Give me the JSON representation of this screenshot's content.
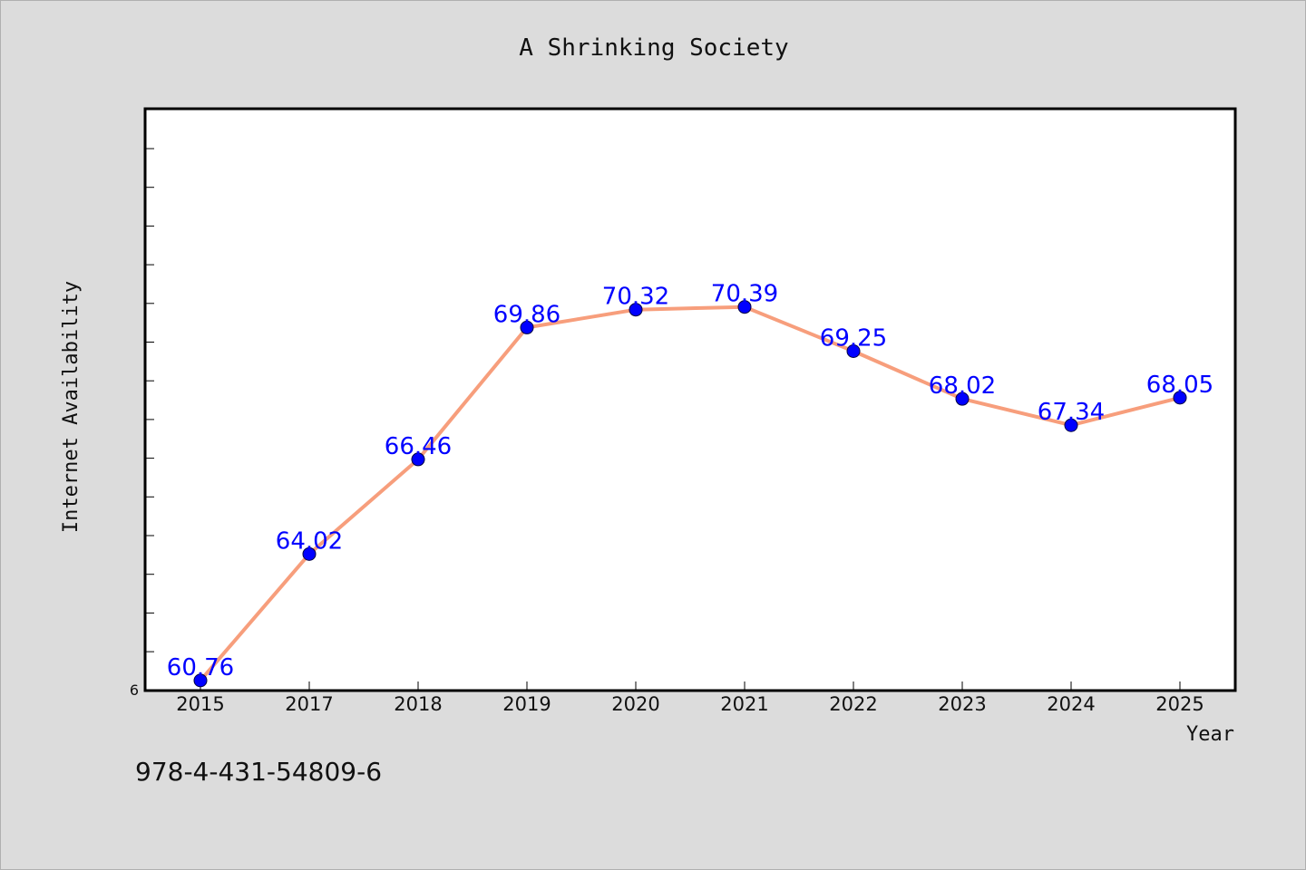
{
  "footer_text": "978-4-431-54809-6",
  "colors": {
    "background": "#dcdcdc",
    "plot_background": "#ffffff",
    "line": "#f79e7c",
    "marker": "#0000ff",
    "data_label": "#0000ff"
  },
  "chart_data": {
    "type": "line",
    "title": "A Shrinking Society",
    "xlabel": "Year",
    "ylabel": "Internet Availability",
    "categories": [
      "2015",
      "2017",
      "2018",
      "2019",
      "2020",
      "2021",
      "2022",
      "2023",
      "2024",
      "2025"
    ],
    "series": [
      {
        "values": [
          60.76,
          64.02,
          66.46,
          69.86,
          70.32,
          70.39,
          69.25,
          68.02,
          67.34,
          68.05
        ],
        "labels": [
          "60.76",
          "64.02",
          "66.46",
          "69.86",
          "70.32",
          "70.39",
          "69.25",
          "68.02",
          "67.34",
          "68.05"
        ]
      }
    ],
    "ylim": [
      60.5,
      75.5
    ],
    "ytick_visible_label": "6",
    "grid": false,
    "legend": "none"
  }
}
